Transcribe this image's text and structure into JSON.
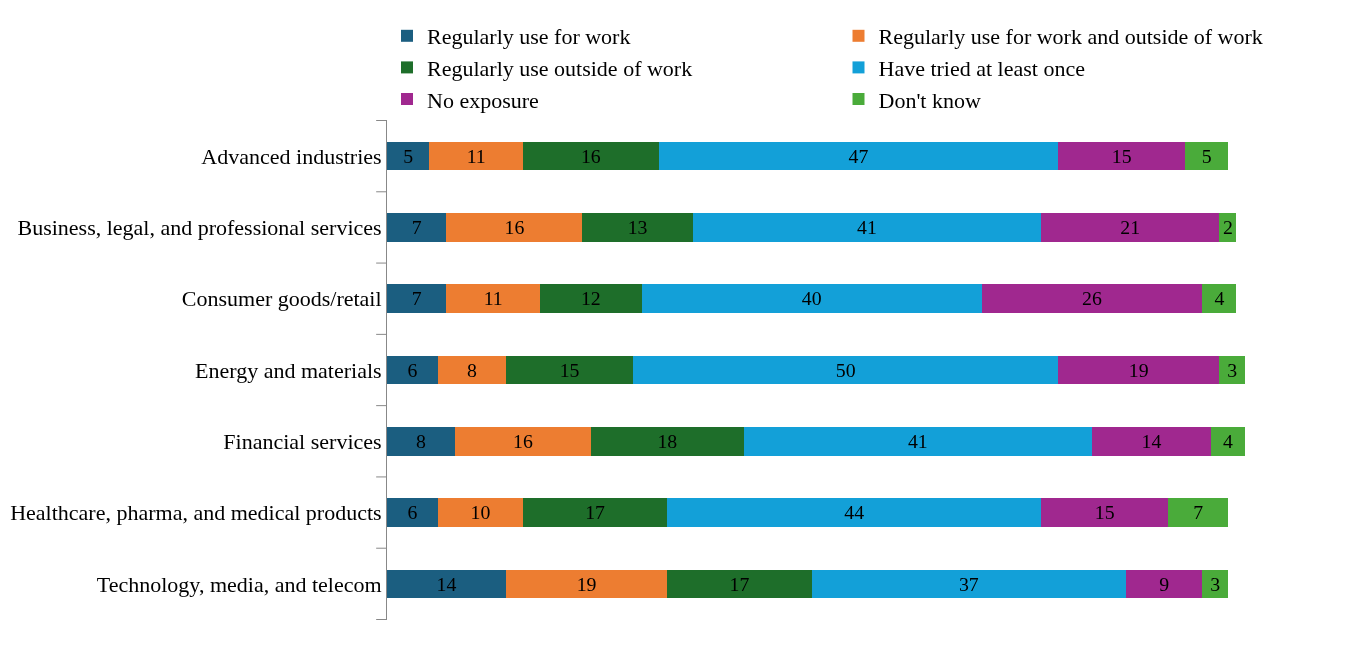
{
  "chart_data": {
    "type": "bar",
    "orientation": "horizontal",
    "stacked": true,
    "data_labels": true,
    "legend": "top",
    "tick_labels": "y",
    "categories": [
      "Advanced industries",
      "Business, legal, and professional services",
      "Consumer goods/retail",
      "Energy and materials",
      "Financial services",
      "Healthcare, pharma, and medical products",
      "Technology, media, and telecom"
    ],
    "series": [
      {
        "name": "Regularly use for work",
        "color": "#1b5e80",
        "values": [
          5,
          7,
          7,
          6,
          8,
          6,
          14
        ]
      },
      {
        "name": "Regularly use for work and outside of work",
        "color": "#ed7d31",
        "values": [
          11,
          16,
          11,
          8,
          16,
          10,
          19
        ]
      },
      {
        "name": "Regularly use outside of work",
        "color": "#1e6e2a",
        "values": [
          16,
          13,
          12,
          15,
          18,
          17,
          17
        ]
      },
      {
        "name": "Have tried at least once",
        "color": "#13a0d8",
        "values": [
          47,
          41,
          40,
          50,
          41,
          44,
          37
        ]
      },
      {
        "name": "No exposure",
        "color": "#a0288f",
        "values": [
          15,
          21,
          26,
          19,
          14,
          15,
          9
        ]
      },
      {
        "name": "Don't know",
        "color": "#4aab3a",
        "values": [
          5,
          2,
          4,
          3,
          4,
          7,
          3
        ]
      }
    ]
  }
}
